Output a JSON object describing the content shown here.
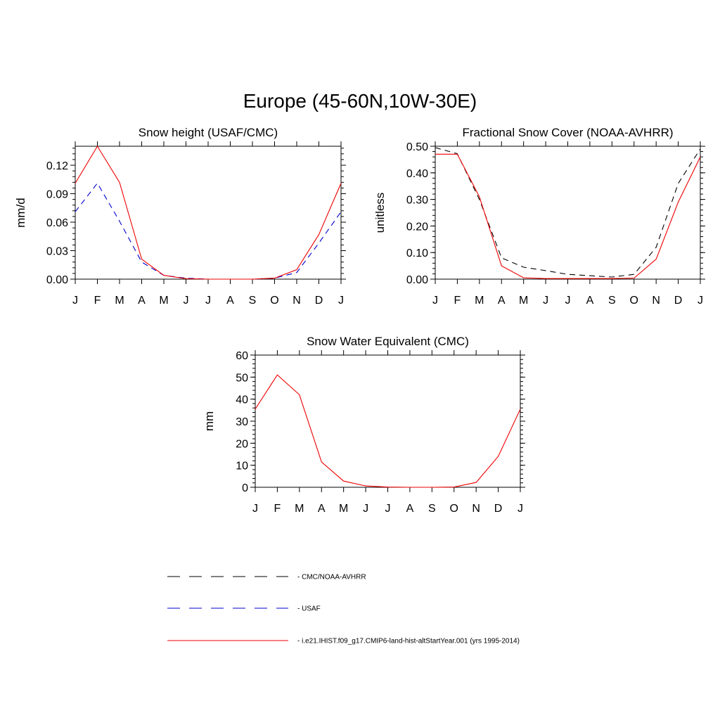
{
  "title": "Europe (45-60N,10W-30E)",
  "colors": {
    "obs": "#000000",
    "usaf": "#0000cc",
    "model": "#ee0000"
  },
  "months": [
    "J",
    "F",
    "M",
    "A",
    "M",
    "J",
    "J",
    "A",
    "S",
    "O",
    "N",
    "D",
    "J"
  ],
  "chart_data": [
    {
      "type": "line",
      "title": "Snow height (USAF/CMC)",
      "xlabel": "",
      "ylabel": "mm/d",
      "ylim": [
        0,
        0.14
      ],
      "yticks": [
        "0.00",
        "0.03",
        "0.06",
        "0.09",
        "0.12"
      ],
      "categories": [
        "J",
        "F",
        "M",
        "A",
        "M",
        "J",
        "J",
        "A",
        "S",
        "O",
        "N",
        "D",
        "J"
      ],
      "series": [
        {
          "name": "CMC/NOAA-AVHRR",
          "style": "dashed",
          "color": "#000000",
          "values": [
            0,
            0,
            0,
            0,
            0,
            0,
            0,
            0,
            0,
            0,
            0,
            0,
            0
          ]
        },
        {
          "name": "USAF",
          "style": "dashed",
          "color": "#0000cc",
          "values": [
            0.071,
            0.101,
            0.061,
            0.018,
            0.004,
            0.001,
            0,
            0,
            0,
            0.001,
            0.007,
            0.038,
            0.071
          ]
        },
        {
          "name": "i.e21.IHIST.f09_g17.CMIP6-land-hist-altStartYear.001 (yrs 1995-2014)",
          "style": "solid",
          "color": "#ee0000",
          "values": [
            0.101,
            0.14,
            0.102,
            0.021,
            0.004,
            0.0005,
            0,
            0,
            0,
            0.001,
            0.01,
            0.047,
            0.101
          ]
        }
      ]
    },
    {
      "type": "line",
      "title": "Fractional Snow Cover (NOAA-AVHRR)",
      "xlabel": "",
      "ylabel": "unitless",
      "ylim": [
        0,
        0.5
      ],
      "yticks": [
        "0.00",
        "0.10",
        "0.20",
        "0.30",
        "0.40",
        "0.50"
      ],
      "categories": [
        "J",
        "F",
        "M",
        "A",
        "M",
        "J",
        "J",
        "A",
        "S",
        "O",
        "N",
        "D",
        "J"
      ],
      "series": [
        {
          "name": "CMC/NOAA-AVHRR",
          "style": "dashed",
          "color": "#000000",
          "values": [
            0.495,
            0.472,
            0.3,
            0.08,
            0.045,
            0.032,
            0.018,
            0.013,
            0.008,
            0.018,
            0.12,
            0.36,
            0.49
          ]
        },
        {
          "name": "i.e21.IHIST.f09_g17.CMIP6-land-hist-altStartYear.001 (yrs 1995-2014)",
          "style": "solid",
          "color": "#ee0000",
          "values": [
            0.47,
            0.47,
            0.31,
            0.05,
            0.005,
            0.002,
            0.002,
            0.002,
            0.002,
            0.004,
            0.075,
            0.29,
            0.46
          ]
        }
      ]
    },
    {
      "type": "line",
      "title": "Snow Water Equivalent (CMC)",
      "xlabel": "",
      "ylabel": "mm",
      "ylim": [
        0,
        60
      ],
      "yticks": [
        "0",
        "10",
        "20",
        "30",
        "40",
        "50",
        "60"
      ],
      "categories": [
        "J",
        "F",
        "M",
        "A",
        "M",
        "J",
        "J",
        "A",
        "S",
        "O",
        "N",
        "D",
        "J"
      ],
      "series": [
        {
          "name": "CMC/NOAA-AVHRR",
          "style": "dashed",
          "color": "#000000",
          "values": [
            0,
            0,
            0,
            0,
            0,
            0,
            0,
            0,
            0,
            0,
            0,
            0,
            0
          ]
        },
        {
          "name": "i.e21.IHIST.f09_g17.CMIP6-land-hist-altStartYear.001 (yrs 1995-2014)",
          "style": "solid",
          "color": "#ee0000",
          "values": [
            35.5,
            51,
            42,
            11.5,
            2.8,
            0.6,
            0.1,
            0,
            0,
            0.1,
            2.2,
            14,
            35.5
          ]
        }
      ]
    }
  ],
  "legend": [
    {
      "label": "CMC/NOAA-AVHRR",
      "style": "dashed",
      "color": "#000000"
    },
    {
      "label": "USAF",
      "style": "dashed",
      "color": "#0000cc"
    },
    {
      "label": "i.e21.IHIST.f09_g17.CMIP6-land-hist-altStartYear.001 (yrs 1995-2014)",
      "style": "solid",
      "color": "#ee0000"
    }
  ]
}
